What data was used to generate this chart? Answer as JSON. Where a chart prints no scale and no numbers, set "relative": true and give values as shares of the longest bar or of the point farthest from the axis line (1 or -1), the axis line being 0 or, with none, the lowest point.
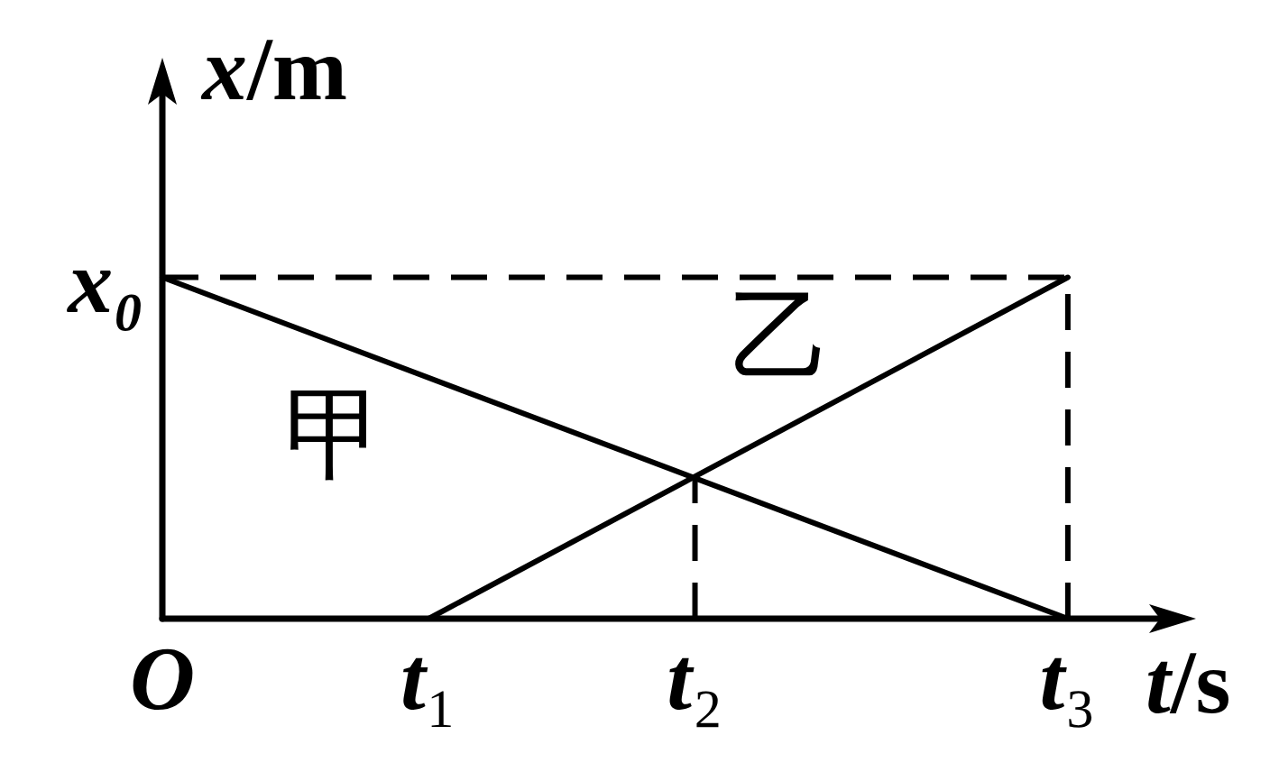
{
  "chart_data": {
    "type": "line",
    "xlabel": "t/s",
    "ylabel": "x/m",
    "relative": true,
    "categories": [
      "O",
      null,
      null,
      null,
      null,
      "t₁",
      null,
      null,
      null,
      null,
      "t₂",
      null,
      null,
      null,
      null,
      null,
      null,
      "t₃",
      null,
      null
    ],
    "annotations": [
      {
        "text": "x₀",
        "x": "O",
        "y": 1
      }
    ],
    "series": [
      {
        "name": "甲",
        "color": "#000000",
        "x": [
          "O",
          "t₃"
        ],
        "values": [
          1,
          0
        ]
      },
      {
        "name": "乙",
        "color": "#000000",
        "x": [
          "t₁",
          "t₃"
        ],
        "values": [
          0,
          1
        ]
      },
      {
        "color": "#000000",
        "x": [
          "O",
          "t₃"
        ],
        "values": [
          1,
          1
        ],
        "line_style": "dashed"
      }
    ],
    "ref_lines": [
      {
        "axis": "x",
        "value": "t₂",
        "color": "#000000",
        "line_style": "dashed"
      },
      {
        "axis": "x",
        "value": "t₃",
        "color": "#000000",
        "line_style": "dashed"
      }
    ]
  }
}
